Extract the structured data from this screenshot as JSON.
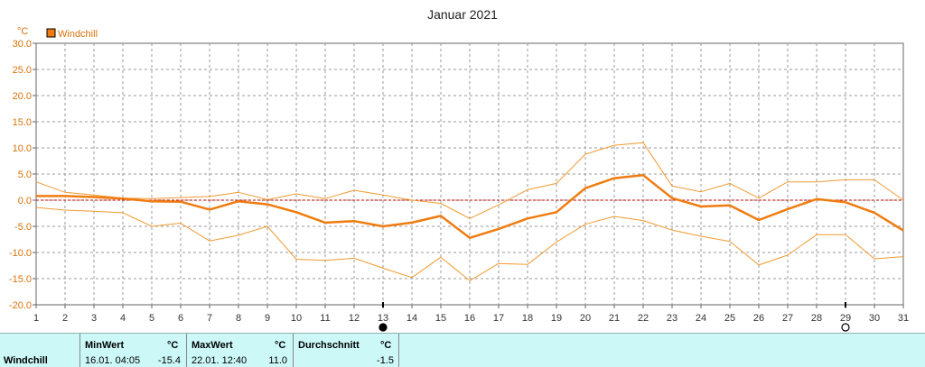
{
  "chart_data": {
    "type": "line",
    "title": "Januar 2021",
    "yunit": "°C",
    "ylim": [
      -20,
      30
    ],
    "yticks": [
      "30.0",
      "25.0",
      "20.0",
      "15.0",
      "10.0",
      "5.0",
      "0.0",
      "-5.0",
      "-10.0",
      "-15.0",
      "-20.0"
    ],
    "categories": [
      "1",
      "2",
      "3",
      "4",
      "5",
      "6",
      "7",
      "8",
      "9",
      "10",
      "11",
      "12",
      "13",
      "14",
      "15",
      "16",
      "17",
      "18",
      "19",
      "20",
      "21",
      "22",
      "23",
      "24",
      "25",
      "26",
      "27",
      "28",
      "29",
      "30",
      "31"
    ],
    "legend": {
      "label": "Windchill",
      "position": "top-left"
    },
    "grid": true,
    "series": [
      {
        "name": "Windchill",
        "role": "average",
        "values": [
          0.8,
          0.8,
          0.6,
          0.3,
          -0.2,
          -0.3,
          -1.8,
          -0.2,
          -0.8,
          -2.3,
          -4.3,
          -4.0,
          -5.0,
          -4.3,
          -3.0,
          -7.2,
          -5.5,
          -3.5,
          -2.3,
          2.3,
          4.2,
          4.8,
          0.4,
          -1.2,
          -1.0,
          -3.8,
          -1.7,
          0.2,
          -0.4,
          -2.4,
          -5.8
        ]
      },
      {
        "role": "max",
        "values": [
          3.5,
          1.5,
          1.0,
          0.4,
          0.3,
          0.5,
          0.7,
          1.5,
          0.1,
          1.2,
          0.3,
          1.9,
          1.0,
          0.0,
          -0.6,
          -3.5,
          -0.9,
          2.0,
          3.2,
          8.8,
          10.5,
          11.0,
          2.7,
          1.6,
          3.2,
          0.4,
          3.5,
          3.5,
          3.9,
          3.9,
          0.0
        ]
      },
      {
        "role": "min",
        "values": [
          -1.4,
          -1.9,
          -2.1,
          -2.4,
          -5.0,
          -4.4,
          -7.8,
          -6.7,
          -5.0,
          -11.3,
          -11.5,
          -11.1,
          -13.0,
          -14.8,
          -10.9,
          -15.4,
          -12.1,
          -12.3,
          -8.0,
          -4.6,
          -3.1,
          -3.9,
          -5.7,
          -6.9,
          -7.9,
          -12.4,
          -10.5,
          -6.6,
          -6.6,
          -11.2,
          -10.8
        ]
      }
    ],
    "reference_line": 0,
    "moon_markers": [
      {
        "day": 13,
        "phase": "new-moon"
      },
      {
        "day": 29,
        "phase": "full-moon"
      }
    ]
  },
  "footer": {
    "row_label": "Windchill",
    "min": {
      "header": "MinWert",
      "unit": "°C",
      "datetime": "16.01.  04:05",
      "value": "-15.4"
    },
    "max": {
      "header": "MaxWert",
      "unit": "°C",
      "datetime": "22.01.  12:40",
      "value": "11.0"
    },
    "avg": {
      "header": "Durchschnitt",
      "unit": "°C",
      "value": "-1.5"
    }
  },
  "colors": {
    "series": "#f07c10",
    "range": "#f09a30",
    "zero_line": "#cc0000",
    "grid": "#9a9a9a",
    "axis_label": "#d9730a",
    "footer_bg": "#ccf8f8"
  }
}
